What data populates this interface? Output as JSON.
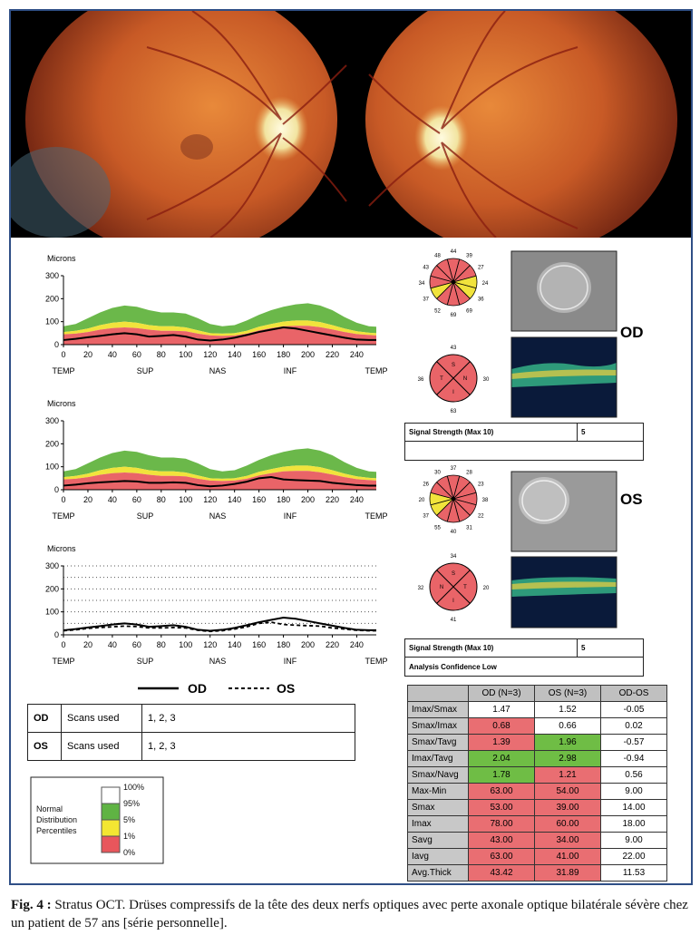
{
  "charts": [
    {
      "title": "Microns",
      "y_ticks": [
        "300",
        "200",
        "100",
        "0"
      ],
      "x_ticks": [
        "0",
        "20",
        "40",
        "60",
        "80",
        "100",
        "120",
        "140",
        "160",
        "180",
        "200",
        "220",
        "240"
      ],
      "region_labels": [
        "TEMP",
        "SUP",
        "NAS",
        "INF",
        "TEMP"
      ]
    },
    {
      "title": "Microns",
      "y_ticks": [
        "300",
        "200",
        "100",
        "0"
      ],
      "x_ticks": [
        "0",
        "20",
        "40",
        "60",
        "80",
        "100",
        "120",
        "140",
        "160",
        "180",
        "200",
        "220",
        "240"
      ],
      "region_labels": [
        "TEMP",
        "SUP",
        "NAS",
        "INF",
        "TEMP"
      ]
    },
    {
      "title": "Microns",
      "y_ticks": [
        "300",
        "200",
        "100",
        "0"
      ],
      "x_ticks": [
        "0",
        "20",
        "40",
        "60",
        "80",
        "100",
        "120",
        "140",
        "160",
        "180",
        "200",
        "220",
        "240"
      ],
      "region_labels": [
        "TEMP",
        "SUP",
        "NAS",
        "INF",
        "TEMP"
      ]
    }
  ],
  "chart_data": [
    {
      "type": "area",
      "title": "Microns",
      "xlim": [
        0,
        256
      ],
      "ylim": [
        0,
        300
      ],
      "x": [
        0,
        10,
        20,
        30,
        40,
        50,
        60,
        70,
        80,
        90,
        100,
        110,
        120,
        130,
        140,
        150,
        160,
        170,
        180,
        190,
        200,
        210,
        220,
        230,
        240,
        250,
        256
      ],
      "series": [
        {
          "name": "95%",
          "values": [
            80,
            90,
            115,
            140,
            160,
            170,
            165,
            150,
            140,
            140,
            135,
            115,
            90,
            80,
            85,
            105,
            130,
            150,
            165,
            175,
            180,
            170,
            150,
            120,
            95,
            80,
            78
          ]
        },
        {
          "name": "5%",
          "values": [
            55,
            60,
            70,
            85,
            95,
            100,
            95,
            85,
            80,
            80,
            75,
            62,
            50,
            48,
            50,
            60,
            78,
            90,
            100,
            105,
            105,
            98,
            85,
            70,
            58,
            52,
            50
          ]
        },
        {
          "name": "1%",
          "values": [
            45,
            48,
            55,
            65,
            72,
            75,
            72,
            65,
            60,
            60,
            58,
            48,
            40,
            38,
            40,
            48,
            62,
            72,
            80,
            82,
            82,
            76,
            66,
            55,
            46,
            42,
            40
          ]
        },
        {
          "name": "OD",
          "values": [
            20,
            25,
            32,
            38,
            45,
            50,
            45,
            35,
            38,
            42,
            35,
            22,
            18,
            22,
            30,
            42,
            55,
            65,
            75,
            70,
            60,
            50,
            40,
            30,
            22,
            20,
            20
          ]
        }
      ]
    },
    {
      "type": "area",
      "title": "Microns",
      "xlim": [
        0,
        256
      ],
      "ylim": [
        0,
        300
      ],
      "x": [
        0,
        10,
        20,
        30,
        40,
        50,
        60,
        70,
        80,
        90,
        100,
        110,
        120,
        130,
        140,
        150,
        160,
        170,
        180,
        190,
        200,
        210,
        220,
        230,
        240,
        250,
        256
      ],
      "series": [
        {
          "name": "95%",
          "values": [
            80,
            90,
            115,
            140,
            160,
            170,
            165,
            150,
            140,
            140,
            135,
            115,
            90,
            80,
            85,
            105,
            130,
            150,
            165,
            175,
            180,
            170,
            150,
            120,
            95,
            80,
            78
          ]
        },
        {
          "name": "5%",
          "values": [
            55,
            60,
            70,
            85,
            95,
            100,
            95,
            85,
            80,
            80,
            75,
            62,
            50,
            48,
            50,
            60,
            78,
            90,
            100,
            105,
            105,
            98,
            85,
            70,
            58,
            52,
            50
          ]
        },
        {
          "name": "1%",
          "values": [
            45,
            48,
            55,
            65,
            72,
            75,
            72,
            65,
            60,
            60,
            58,
            48,
            40,
            38,
            40,
            48,
            62,
            72,
            80,
            82,
            82,
            76,
            66,
            55,
            46,
            42,
            40
          ]
        },
        {
          "name": "OS",
          "values": [
            18,
            22,
            28,
            32,
            35,
            38,
            36,
            30,
            30,
            32,
            30,
            20,
            15,
            18,
            25,
            35,
            50,
            55,
            45,
            42,
            40,
            38,
            30,
            25,
            20,
            18,
            18
          ]
        }
      ]
    },
    {
      "type": "line",
      "title": "Microns",
      "xlim": [
        0,
        256
      ],
      "ylim": [
        0,
        300
      ],
      "x": [
        0,
        10,
        20,
        30,
        40,
        50,
        60,
        70,
        80,
        90,
        100,
        110,
        120,
        130,
        140,
        150,
        160,
        170,
        180,
        190,
        200,
        210,
        220,
        230,
        240,
        250,
        256
      ],
      "series": [
        {
          "name": "OD",
          "values": [
            20,
            25,
            32,
            38,
            45,
            50,
            45,
            35,
            38,
            42,
            35,
            22,
            18,
            22,
            30,
            42,
            55,
            65,
            75,
            70,
            60,
            50,
            40,
            30,
            22,
            20,
            20
          ]
        },
        {
          "name": "OS",
          "values": [
            18,
            22,
            28,
            32,
            35,
            38,
            36,
            30,
            30,
            32,
            30,
            20,
            15,
            18,
            25,
            35,
            50,
            55,
            45,
            42,
            40,
            38,
            30,
            25,
            20,
            18,
            18
          ]
        }
      ]
    }
  ],
  "legend_lines": {
    "od": "OD",
    "os": "OS"
  },
  "clock_od": {
    "labels": [
      "44",
      "39",
      "27",
      "24",
      "36",
      "69",
      "69",
      "52",
      "37",
      "34",
      "43",
      "48"
    ]
  },
  "clock_os": {
    "labels": [
      "37",
      "28",
      "23",
      "38",
      "22",
      "31",
      "40",
      "55",
      "37",
      "20",
      "26",
      "30"
    ]
  },
  "quad_od": {
    "top": "43",
    "right": "30",
    "bottom": "63",
    "left": "36",
    "inner": [
      "S",
      "N",
      "I",
      "T"
    ]
  },
  "quad_os": {
    "top": "34",
    "right": "20",
    "bottom": "41",
    "left": "32",
    "inner": [
      "S",
      "T",
      "I",
      "N"
    ]
  },
  "eye_labels": {
    "od": "OD",
    "os": "OS"
  },
  "signal_od": {
    "label": "Signal Strength (Max 10)",
    "value": "5",
    "row2": ""
  },
  "signal_os": {
    "label": "Signal Strength (Max 10)",
    "value": "5",
    "row2": "Analysis Confidence Low"
  },
  "scans": [
    {
      "eye": "OD",
      "label": "Scans used",
      "value": "1, 2, 3"
    },
    {
      "eye": "OS",
      "label": "Scans used",
      "value": "1, 2, 3"
    }
  ],
  "legend": {
    "title_lines": [
      "Normal",
      "Distribution",
      "Percentiles"
    ],
    "levels": [
      "100%",
      "95%",
      "5%",
      "1%",
      "0%"
    ],
    "colors": [
      "#ffffff",
      "#5fb343",
      "#f3e632",
      "#e8565c"
    ]
  },
  "metrics": {
    "headers": [
      "",
      "OD (N=3)",
      "OS (N=3)",
      "OD-OS"
    ],
    "rows": [
      {
        "label": "Imax/Smax",
        "od": "1.47",
        "os": "1.52",
        "diff": "-0.05",
        "odc": "w",
        "osc": "w"
      },
      {
        "label": "Smax/Imax",
        "od": "0.68",
        "os": "0.66",
        "diff": "0.02",
        "odc": "r",
        "osc": "w"
      },
      {
        "label": "Smax/Tavg",
        "od": "1.39",
        "os": "1.96",
        "diff": "-0.57",
        "odc": "r",
        "osc": "g"
      },
      {
        "label": "Imax/Tavg",
        "od": "2.04",
        "os": "2.98",
        "diff": "-0.94",
        "odc": "g",
        "osc": "g"
      },
      {
        "label": "Smax/Navg",
        "od": "1.78",
        "os": "1.21",
        "diff": "0.56",
        "odc": "g",
        "osc": "r"
      },
      {
        "label": "Max-Min",
        "od": "63.00",
        "os": "54.00",
        "diff": "9.00",
        "odc": "r",
        "osc": "r"
      },
      {
        "label": "Smax",
        "od": "53.00",
        "os": "39.00",
        "diff": "14.00",
        "odc": "r",
        "osc": "r"
      },
      {
        "label": "Imax",
        "od": "78.00",
        "os": "60.00",
        "diff": "18.00",
        "odc": "r",
        "osc": "r"
      },
      {
        "label": "Savg",
        "od": "43.00",
        "os": "34.00",
        "diff": "9.00",
        "odc": "r",
        "osc": "r"
      },
      {
        "label": "Iavg",
        "od": "63.00",
        "os": "41.00",
        "diff": "22.00",
        "odc": "r",
        "osc": "r"
      },
      {
        "label": "Avg.Thick",
        "od": "43.42",
        "os": "31.89",
        "diff": "11.53",
        "odc": "r",
        "osc": "r"
      }
    ]
  },
  "caption": {
    "label": "Fig. 4 :",
    "text": "Stratus OCT. Drüses compressifs de la tête des deux nerfs optiques avec perte axonale optique bilatérale sévère chez un patient de 57 ans [série personnelle]."
  }
}
